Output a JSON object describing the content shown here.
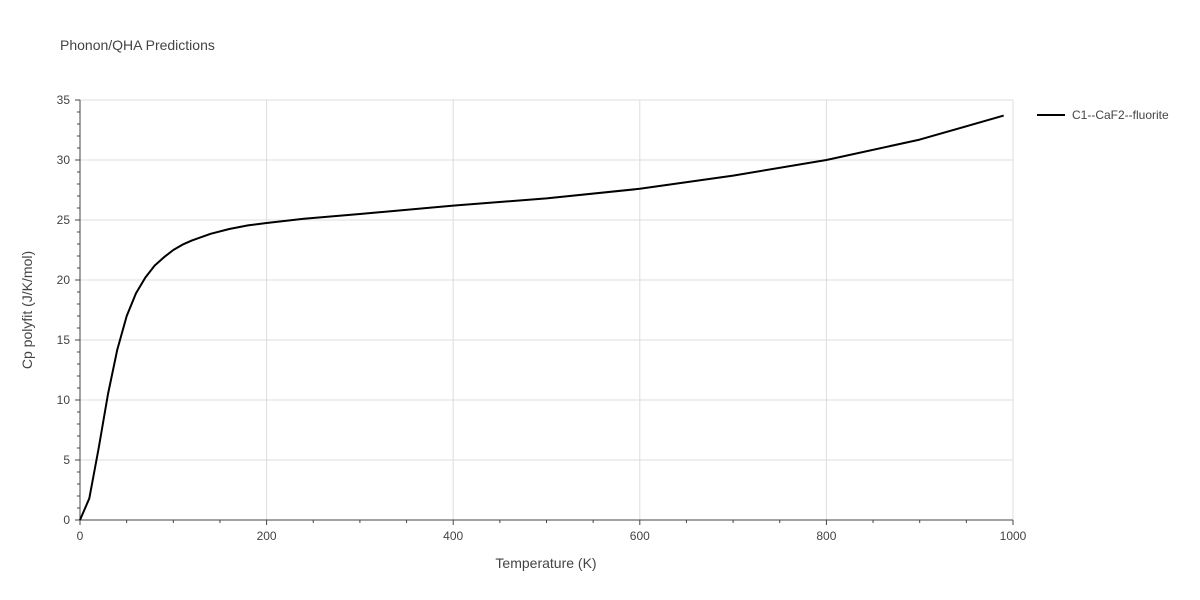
{
  "chart_data": {
    "type": "line",
    "title": "Phonon/QHA Predictions",
    "xlabel": "Temperature (K)",
    "ylabel": "Cp polyfit (J/K/mol)",
    "xlim": [
      0,
      1000
    ],
    "ylim": [
      0,
      35
    ],
    "x_ticks": [
      0,
      200,
      400,
      600,
      800,
      1000
    ],
    "y_ticks": [
      0,
      5,
      10,
      15,
      20,
      25,
      30,
      35
    ],
    "grid": true,
    "legend_position": "top-right",
    "series": [
      {
        "name": "C1--CaF2--fluorite",
        "color": "#000000",
        "x": [
          0,
          10,
          20,
          30,
          40,
          50,
          60,
          70,
          80,
          90,
          100,
          110,
          120,
          140,
          160,
          180,
          200,
          240,
          300,
          400,
          500,
          600,
          700,
          800,
          900,
          990
        ],
        "y": [
          0,
          1.8,
          6.0,
          10.5,
          14.2,
          17.0,
          18.9,
          20.2,
          21.2,
          21.9,
          22.5,
          22.95,
          23.3,
          23.85,
          24.25,
          24.55,
          24.75,
          25.1,
          25.5,
          26.2,
          26.8,
          27.6,
          28.7,
          30.0,
          31.7,
          33.7
        ]
      }
    ]
  }
}
